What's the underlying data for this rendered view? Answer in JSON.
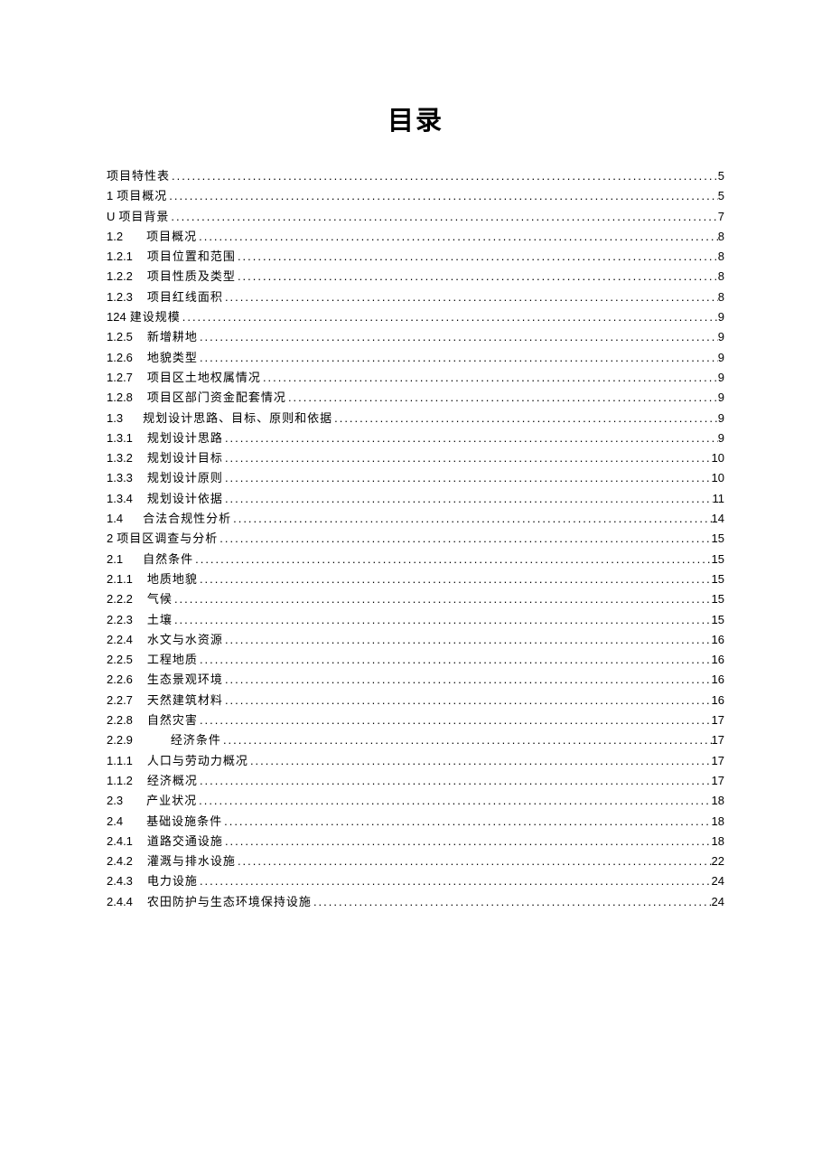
{
  "title": "目录",
  "toc": [
    {
      "num": "",
      "indent": 0,
      "text": "项目特性表",
      "page": "5"
    },
    {
      "num": "1",
      "indent": 0,
      "text": "项目概况",
      "page": "5"
    },
    {
      "num": "U",
      "indent": 0,
      "text": "项目背景",
      "page": "7"
    },
    {
      "num": "1.2",
      "indent": 22,
      "text": "项目概况",
      "page": "8"
    },
    {
      "num": "1.2.1",
      "indent": 12,
      "text": "项目位置和范围",
      "page": "8"
    },
    {
      "num": "1.2.2",
      "indent": 12,
      "text": "项目性质及类型",
      "page": "8"
    },
    {
      "num": "1.2.3",
      "indent": 12,
      "text": "项目红线面积",
      "page": "8"
    },
    {
      "num": "124",
      "indent": 0,
      "text": "建设规模",
      "page": "9"
    },
    {
      "num": "1.2.5",
      "indent": 12,
      "text": "新增耕地",
      "page": "9"
    },
    {
      "num": "1.2.6",
      "indent": 12,
      "text": "地貌类型",
      "page": "9"
    },
    {
      "num": "1.2.7",
      "indent": 12,
      "text": "项目区土地权属情况",
      "page": "9"
    },
    {
      "num": "1.2.8",
      "indent": 12,
      "text": "项目区部门资金配套情况",
      "page": "9"
    },
    {
      "num": "1.3",
      "indent": 18,
      "text": "规划设计思路、目标、原则和依据",
      "page": "9"
    },
    {
      "num": "1.3.1",
      "indent": 12,
      "text": "规划设计思路",
      "page": "9"
    },
    {
      "num": "1.3.2",
      "indent": 12,
      "text": "规划设计目标",
      "page": "10"
    },
    {
      "num": "1.3.3",
      "indent": 12,
      "text": "规划设计原则",
      "page": "10"
    },
    {
      "num": "1.3.4",
      "indent": 12,
      "text": "规划设计依据",
      "page": "11"
    },
    {
      "num": "1.4",
      "indent": 18,
      "text": "合法合规性分析",
      "page": "14"
    },
    {
      "num": "2",
      "indent": 0,
      "text": "项目区调查与分析",
      "page": "15"
    },
    {
      "num": "2.1",
      "indent": 18,
      "text": "自然条件",
      "page": "15"
    },
    {
      "num": "2.1.1",
      "indent": 12,
      "text": "地质地貌",
      "page": "15"
    },
    {
      "num": "2.2.2",
      "indent": 12,
      "text": "气候",
      "page": "15"
    },
    {
      "num": "2.2.3",
      "indent": 12,
      "text": "土壤",
      "page": "15"
    },
    {
      "num": "2.2.4",
      "indent": 12,
      "text": "水文与水资源",
      "page": "16"
    },
    {
      "num": "2.2.5",
      "indent": 12,
      "text": "工程地质",
      "page": "16"
    },
    {
      "num": "2.2.6",
      "indent": 12,
      "text": "生态景观环境",
      "page": "16"
    },
    {
      "num": "2.2.7",
      "indent": 12,
      "text": "天然建筑材料",
      "page": "16"
    },
    {
      "num": "2.2.8",
      "indent": 12,
      "text": "自然灾害",
      "page": "17"
    },
    {
      "num": "2.2.9",
      "indent": 38,
      "text": "经济条件",
      "page": "17"
    },
    {
      "num": "1.1.1",
      "indent": 12,
      "text": "人口与劳动力概况",
      "page": "17"
    },
    {
      "num": "1.1.2",
      "indent": 12,
      "text": "经济概况",
      "page": "17"
    },
    {
      "num": "2.3",
      "indent": 22,
      "text": "产业状况",
      "page": "18"
    },
    {
      "num": "2.4",
      "indent": 22,
      "text": "基础设施条件",
      "page": "18"
    },
    {
      "num": "2.4.1",
      "indent": 12,
      "text": "道路交通设施",
      "page": "18"
    },
    {
      "num": "2.4.2",
      "indent": 12,
      "text": "灌溉与排水设施",
      "page": "22"
    },
    {
      "num": "2.4.3",
      "indent": 12,
      "text": "电力设施",
      "page": "24"
    },
    {
      "num": "2.4.4",
      "indent": 12,
      "text": "农田防护与生态环境保持设施",
      "page": "24"
    }
  ]
}
